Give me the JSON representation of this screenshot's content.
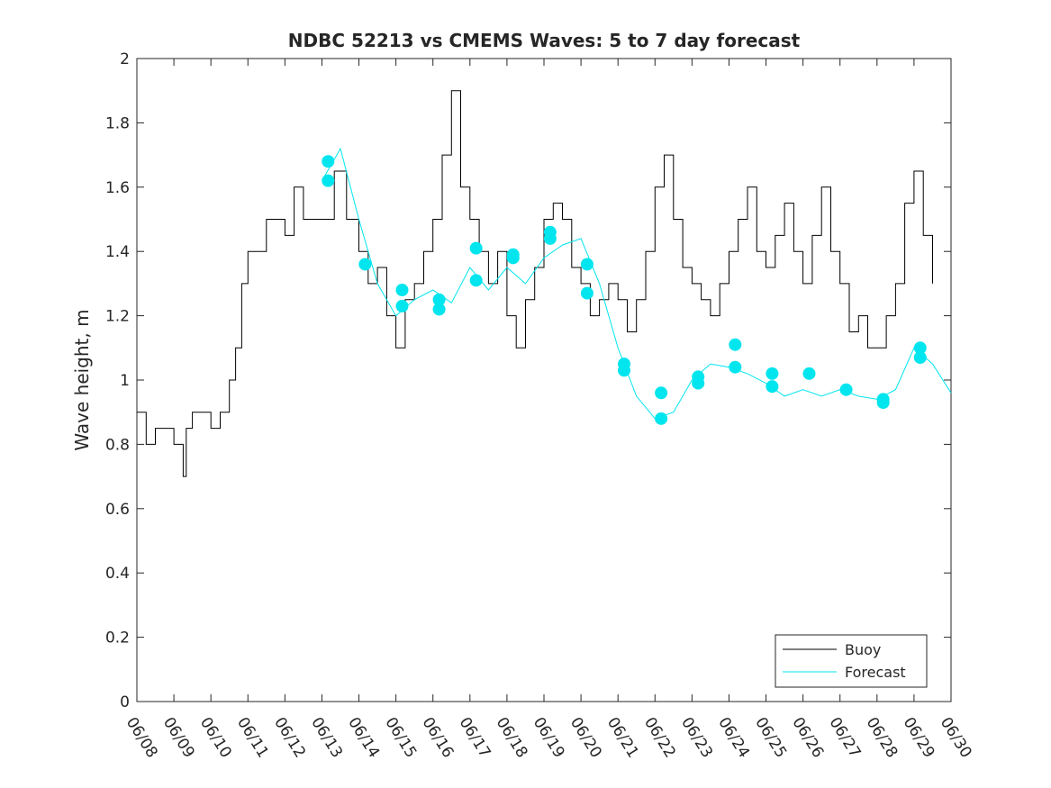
{
  "chart_data": {
    "type": "line",
    "title": "NDBC 52213 vs CMEMS Waves: 5 to 7 day forecast",
    "xlabel": "",
    "ylabel": "Wave height, m",
    "x_unit": "date (MM/DD)",
    "xlim": [
      "06/08",
      "06/30"
    ],
    "ylim": [
      0,
      2
    ],
    "x_ticks": [
      "06/08",
      "06/09",
      "06/10",
      "06/11",
      "06/12",
      "06/13",
      "06/14",
      "06/15",
      "06/16",
      "06/17",
      "06/18",
      "06/19",
      "06/20",
      "06/21",
      "06/22",
      "06/23",
      "06/24",
      "06/25",
      "06/26",
      "06/27",
      "06/28",
      "06/29",
      "06/30"
    ],
    "y_ticks": [
      "0",
      "0.2",
      "0.4",
      "0.6",
      "0.8",
      "1",
      "1.2",
      "1.4",
      "1.6",
      "1.8",
      "2"
    ],
    "grid": false,
    "legend_position": "bottom-right",
    "colors": {
      "buoy": "#000000",
      "forecast": "#00e5ee",
      "axes": "#262626"
    },
    "series": [
      {
        "name": "Buoy",
        "style": "line",
        "x": [
          "06/08 00:00",
          "06/08 06:00",
          "06/08 12:00",
          "06/09 00:00",
          "06/09 06:00",
          "06/09 08:00",
          "06/09 12:00",
          "06/10 00:00",
          "06/10 06:00",
          "06/10 12:00",
          "06/10 16:00",
          "06/10 20:00",
          "06/11 00:00",
          "06/11 12:00",
          "06/12 00:00",
          "06/12 06:00",
          "06/12 12:00",
          "06/13 00:00",
          "06/13 08:00",
          "06/13 16:00",
          "06/14 00:00",
          "06/14 06:00",
          "06/14 12:00",
          "06/14 18:00",
          "06/15 00:00",
          "06/15 06:00",
          "06/15 12:00",
          "06/15 18:00",
          "06/16 00:00",
          "06/16 06:00",
          "06/16 12:00",
          "06/16 18:00",
          "06/17 00:00",
          "06/17 06:00",
          "06/17 12:00",
          "06/17 18:00",
          "06/18 00:00",
          "06/18 06:00",
          "06/18 12:00",
          "06/18 18:00",
          "06/19 00:00",
          "06/19 06:00",
          "06/19 12:00",
          "06/19 18:00",
          "06/20 00:00",
          "06/20 06:00",
          "06/20 12:00",
          "06/20 18:00",
          "06/21 00:00",
          "06/21 06:00",
          "06/21 12:00",
          "06/21 18:00",
          "06/22 00:00",
          "06/22 06:00",
          "06/22 12:00",
          "06/22 18:00",
          "06/23 00:00",
          "06/23 06:00",
          "06/23 12:00",
          "06/23 18:00",
          "06/24 00:00",
          "06/24 06:00",
          "06/24 12:00",
          "06/24 18:00",
          "06/25 00:00",
          "06/25 06:00",
          "06/25 12:00",
          "06/25 18:00",
          "06/26 00:00",
          "06/26 06:00",
          "06/26 12:00",
          "06/26 18:00",
          "06/27 00:00",
          "06/27 06:00",
          "06/27 12:00",
          "06/27 18:00",
          "06/28 00:00",
          "06/28 06:00",
          "06/28 12:00",
          "06/28 18:00",
          "06/29 00:00",
          "06/29 06:00",
          "06/29 12:00"
        ],
        "y": [
          0.9,
          0.8,
          0.85,
          0.8,
          0.7,
          0.85,
          0.9,
          0.85,
          0.9,
          1.0,
          1.1,
          1.3,
          1.4,
          1.5,
          1.45,
          1.6,
          1.5,
          1.5,
          1.65,
          1.5,
          1.4,
          1.3,
          1.35,
          1.2,
          1.1,
          1.25,
          1.3,
          1.4,
          1.5,
          1.7,
          1.9,
          1.6,
          1.5,
          1.4,
          1.3,
          1.4,
          1.2,
          1.1,
          1.25,
          1.35,
          1.5,
          1.55,
          1.5,
          1.35,
          1.3,
          1.2,
          1.25,
          1.3,
          1.25,
          1.15,
          1.25,
          1.4,
          1.6,
          1.7,
          1.5,
          1.35,
          1.3,
          1.25,
          1.2,
          1.3,
          1.4,
          1.5,
          1.6,
          1.4,
          1.35,
          1.45,
          1.55,
          1.4,
          1.3,
          1.45,
          1.6,
          1.4,
          1.3,
          1.15,
          1.2,
          1.1,
          1.1,
          1.2,
          1.3,
          1.55,
          1.65,
          1.45,
          1.3
        ]
      },
      {
        "name": "Forecast",
        "style": "line",
        "x": [
          "06/13 00:00",
          "06/13 12:00",
          "06/14 00:00",
          "06/14 12:00",
          "06/15 00:00",
          "06/15 12:00",
          "06/16 00:00",
          "06/16 12:00",
          "06/17 00:00",
          "06/17 12:00",
          "06/18 00:00",
          "06/18 12:00",
          "06/19 00:00",
          "06/19 12:00",
          "06/20 00:00",
          "06/20 12:00",
          "06/21 00:00",
          "06/21 12:00",
          "06/22 00:00",
          "06/22 12:00",
          "06/23 00:00",
          "06/23 12:00",
          "06/24 00:00",
          "06/24 12:00",
          "06/25 00:00",
          "06/25 12:00",
          "06/26 00:00",
          "06/26 12:00",
          "06/27 00:00",
          "06/27 12:00",
          "06/28 00:00",
          "06/28 12:00",
          "06/29 00:00",
          "06/29 12:00",
          "06/30 00:00"
        ],
        "y": [
          1.62,
          1.72,
          1.5,
          1.3,
          1.2,
          1.25,
          1.28,
          1.24,
          1.35,
          1.28,
          1.35,
          1.3,
          1.38,
          1.42,
          1.44,
          1.3,
          1.1,
          0.95,
          0.88,
          0.9,
          1.0,
          1.05,
          1.04,
          1.02,
          0.99,
          0.95,
          0.97,
          0.95,
          0.97,
          0.95,
          0.94,
          0.97,
          1.1,
          1.05,
          0.96
        ]
      },
      {
        "name": "Forecast",
        "style": "markers",
        "x": [
          "06/13 04:00",
          "06/13 04:00",
          "06/14 04:00",
          "06/15 04:00",
          "06/15 04:00",
          "06/16 04:00",
          "06/16 04:00",
          "06/17 04:00",
          "06/17 04:00",
          "06/18 04:00",
          "06/18 04:00",
          "06/19 04:00",
          "06/19 04:00",
          "06/20 04:00",
          "06/20 04:00",
          "06/21 04:00",
          "06/21 04:00",
          "06/22 04:00",
          "06/22 04:00",
          "06/23 04:00",
          "06/23 04:00",
          "06/24 04:00",
          "06/24 04:00",
          "06/25 04:00",
          "06/25 04:00",
          "06/26 04:00",
          "06/27 04:00",
          "06/28 04:00",
          "06/28 04:00",
          "06/29 04:00",
          "06/29 04:00"
        ],
        "y": [
          1.68,
          1.62,
          1.36,
          1.28,
          1.23,
          1.25,
          1.22,
          1.41,
          1.31,
          1.39,
          1.38,
          1.46,
          1.44,
          1.36,
          1.27,
          1.05,
          1.03,
          0.96,
          0.88,
          1.01,
          0.99,
          1.11,
          1.04,
          1.02,
          0.98,
          1.02,
          0.97,
          0.94,
          0.93,
          1.1,
          1.07
        ]
      }
    ]
  }
}
